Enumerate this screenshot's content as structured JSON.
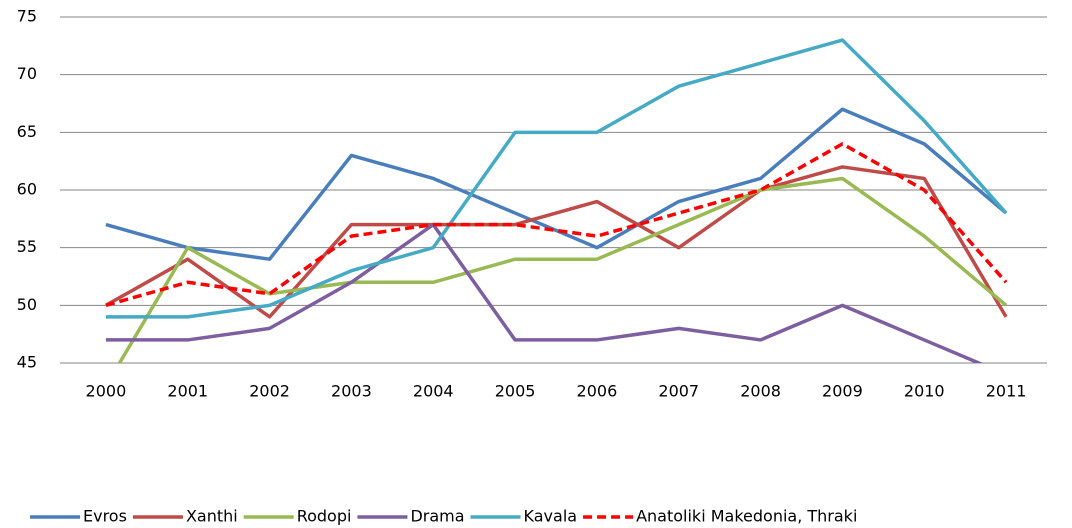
{
  "chart_data": {
    "type": "line",
    "categories": [
      "2000",
      "2001",
      "2002",
      "2003",
      "2004",
      "2005",
      "2006",
      "2007",
      "2008",
      "2009",
      "2010",
      "2011"
    ],
    "ylim": [
      45,
      75
    ],
    "yticks": [
      45,
      50,
      55,
      60,
      65,
      70,
      75
    ],
    "grid": true,
    "legend": "bottom",
    "series": [
      {
        "name": "Evros",
        "color": "#4a7ebb",
        "values": [
          57,
          55,
          54,
          63,
          61,
          58,
          55,
          59,
          61,
          67,
          64,
          58
        ]
      },
      {
        "name": "Xanthi",
        "color": "#be4b48",
        "values": [
          50,
          54,
          49,
          57,
          57,
          57,
          59,
          55,
          60,
          62,
          61,
          49
        ]
      },
      {
        "name": "Rodopi",
        "color": "#98b954",
        "values": [
          43,
          55,
          51,
          52,
          52,
          54,
          54,
          57,
          60,
          61,
          56,
          50
        ]
      },
      {
        "name": "Drama",
        "color": "#7d5fa0",
        "values": [
          47,
          47,
          48,
          52,
          57,
          47,
          47,
          48,
          47,
          50,
          47,
          44
        ]
      },
      {
        "name": "Kavala",
        "color": "#46aac5",
        "values": [
          49,
          49,
          50,
          53,
          55,
          65,
          65,
          69,
          71,
          73,
          66,
          58
        ]
      },
      {
        "name": "Anatoliki Makedonia, Thraki",
        "color": "#ff0000",
        "dashed": true,
        "values": [
          50,
          52,
          51,
          56,
          57,
          57,
          56,
          58,
          60,
          64,
          60,
          52
        ]
      }
    ]
  }
}
